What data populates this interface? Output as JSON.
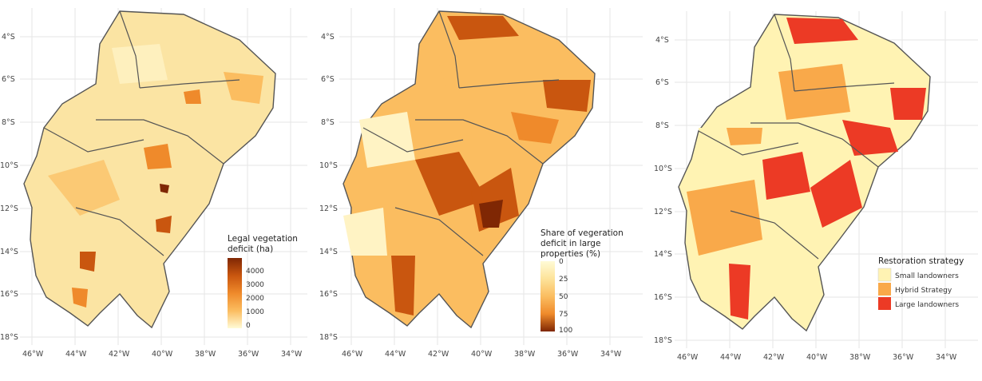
{
  "panels": [
    {
      "legend": {
        "title_lines": [
          "Legal vegetation",
          "deficit (ha)"
        ],
        "ticks": [
          "4000",
          "3000",
          "2000",
          "1000",
          "0"
        ]
      }
    },
    {
      "legend": {
        "title_lines": [
          "Share of vegeration",
          "deficit in large",
          "properties (%)"
        ],
        "ticks": [
          "0",
          "25",
          "50",
          "75",
          "100"
        ]
      }
    },
    {
      "legend": {
        "title": "Restoration strategy",
        "items": [
          {
            "label": "Small landowners",
            "color": "#fff3b3"
          },
          {
            "label": "Hybrid Strategy",
            "color": "#f9a94a"
          },
          {
            "label": "Large landowners",
            "color": "#ec3a25"
          }
        ]
      }
    }
  ],
  "axes": {
    "lat_labels": [
      "4°S",
      "6°S",
      "8°S",
      "10°S",
      "12°S",
      "14°S",
      "16°S",
      "18°S"
    ],
    "lon_labels": [
      "46°W",
      "44°W",
      "42°W",
      "40°W",
      "38°W",
      "36°W",
      "34°W"
    ]
  },
  "colors": {
    "deficit_ramp": [
      "#fffbd6",
      "#fde39a",
      "#fbbd60",
      "#ef8a2b",
      "#c9560f",
      "#7f2704"
    ],
    "share_ramp": [
      "#fffbd6",
      "#fde39a",
      "#fbbd60",
      "#ef8a2b",
      "#c9560f",
      "#7f2704"
    ],
    "border": "#555555"
  }
}
